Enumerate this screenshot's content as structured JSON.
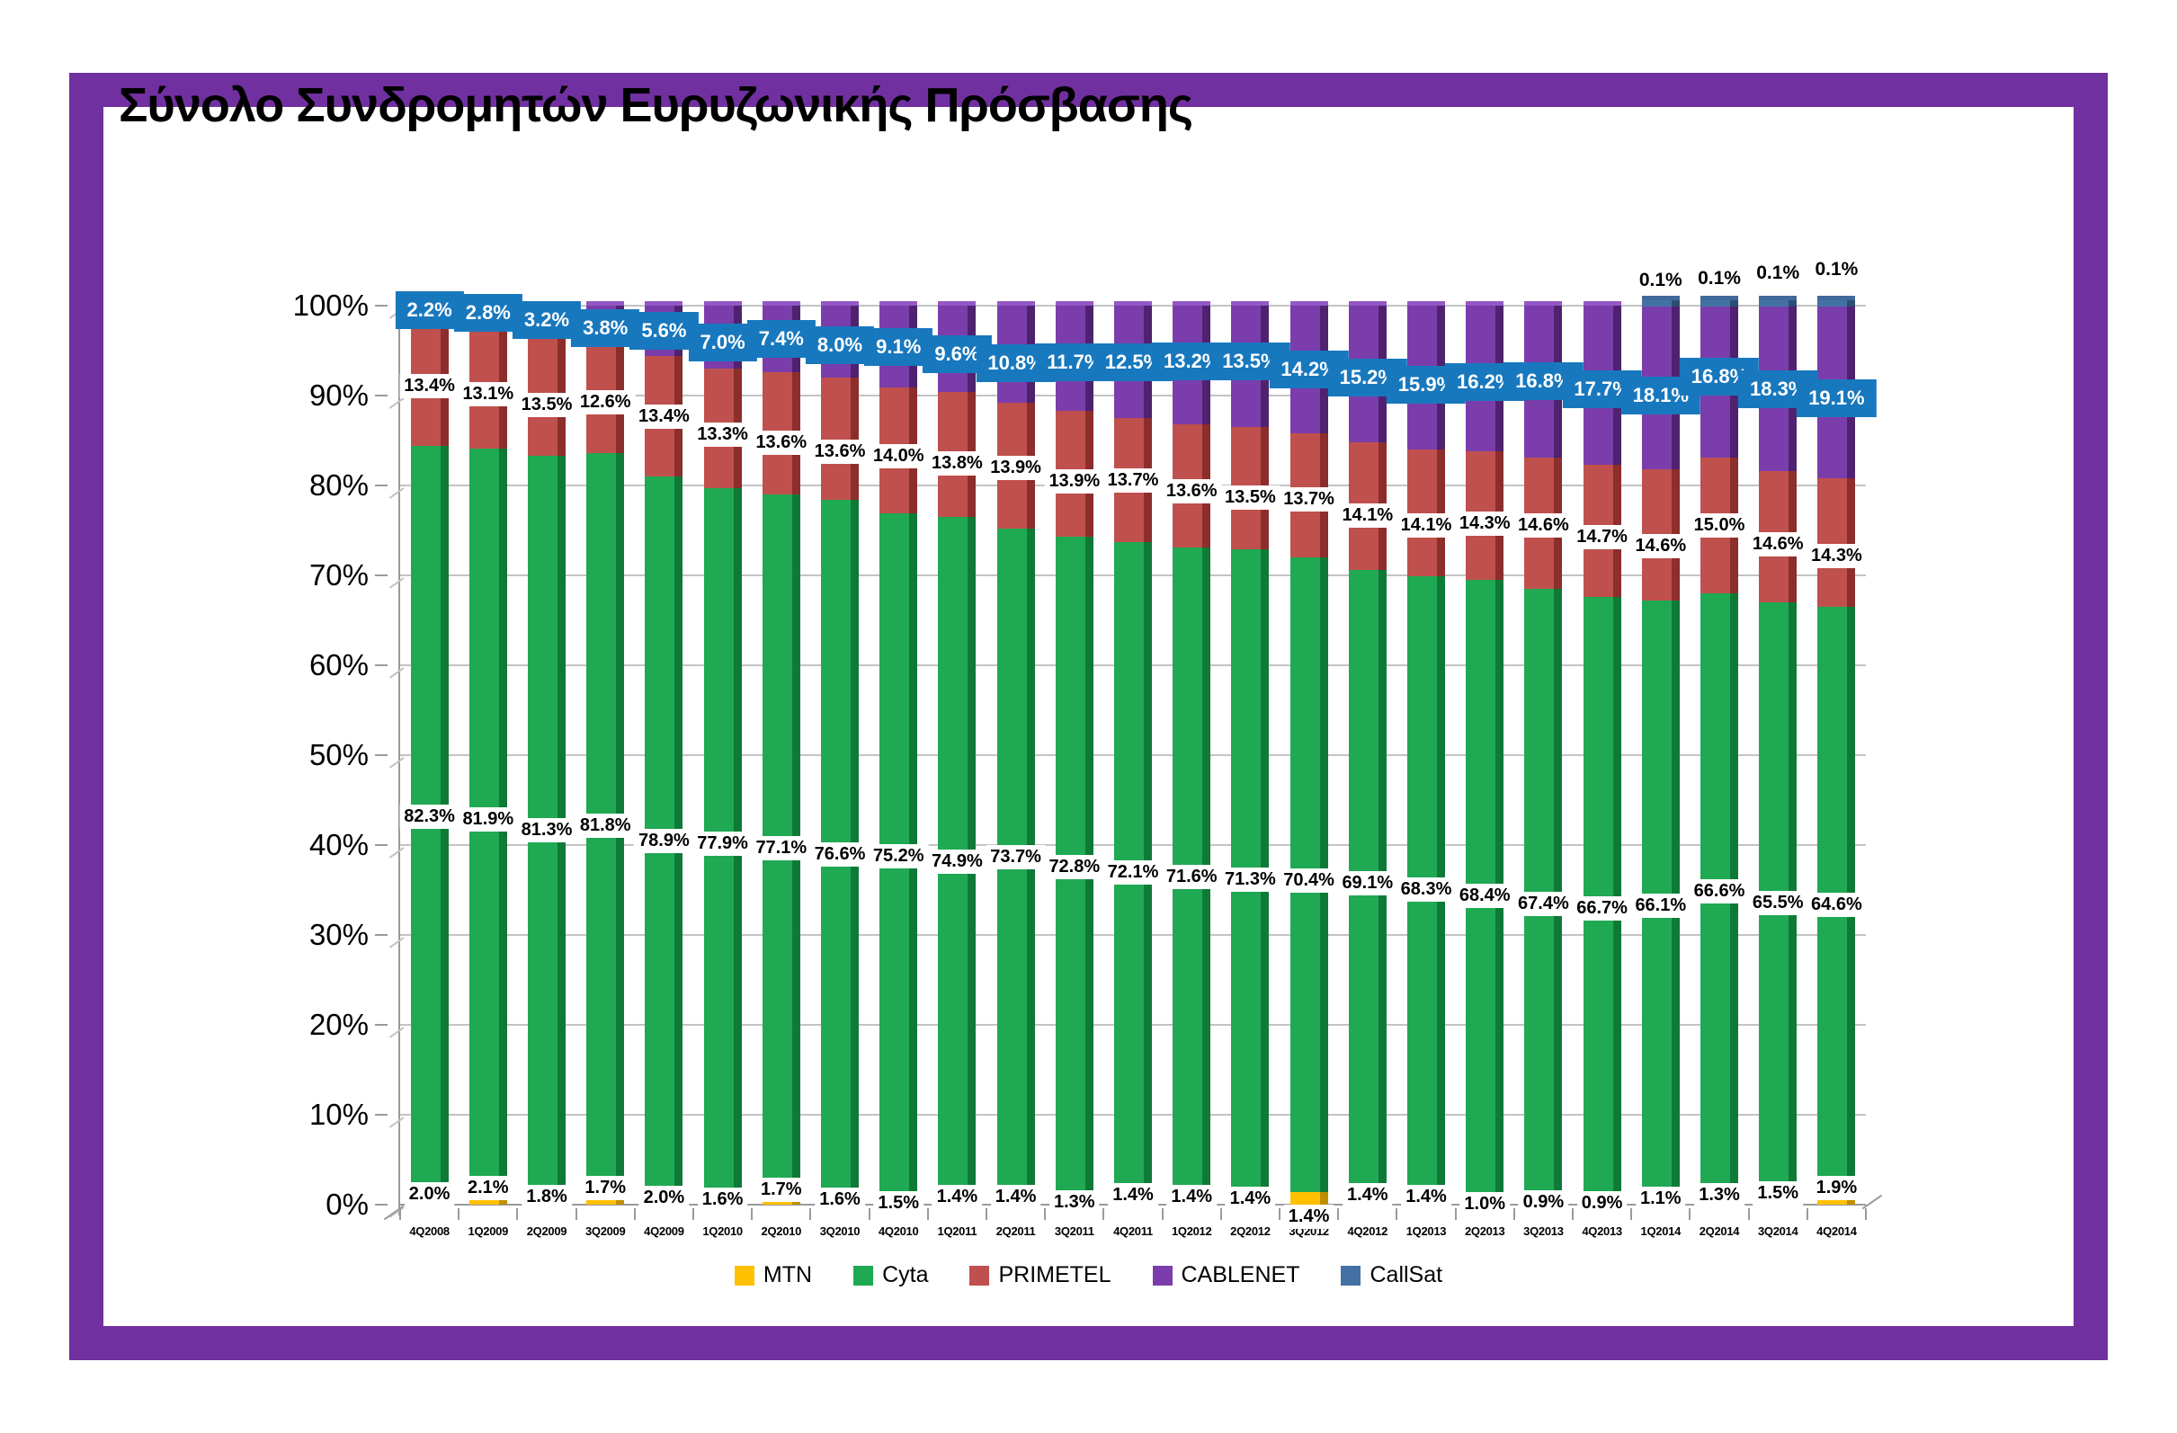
{
  "title": "Σύνολο Συνδρομητών Ευρυζωνικής Πρόσβασης",
  "colors": {
    "frame": "#7030A0",
    "gridline": "#C3C3C3",
    "axis": "#9A9A9A",
    "cablenet_label_bg": "#1878BE",
    "cablenet_label_text": "#FFFFFF",
    "data_label_text": "#000000"
  },
  "chart_data": {
    "type": "bar",
    "subtype": "stacked-100-percent-column",
    "title": "Σύνολο Συνδρομητών Ευρυζωνικής Πρόσβασης",
    "categories": [
      "4Q2008",
      "1Q2009",
      "2Q2009",
      "3Q2009",
      "4Q2009",
      "1Q2010",
      "2Q2010",
      "3Q2010",
      "4Q2010",
      "1Q2011",
      "2Q2011",
      "3Q2011",
      "4Q2011",
      "1Q2012",
      "2Q2012",
      "3Q2012",
      "4Q2012",
      "1Q2013",
      "2Q2013",
      "3Q2013",
      "4Q2013",
      "1Q2014",
      "2Q2014",
      "3Q2014",
      "4Q2014"
    ],
    "series": [
      {
        "name": "MTN",
        "color": "#FFC000",
        "side_color": "#BE8F00",
        "values": [
          2.0,
          2.1,
          1.8,
          1.7,
          2.0,
          1.6,
          1.7,
          1.6,
          1.5,
          1.4,
          1.4,
          1.3,
          1.4,
          1.4,
          1.4,
          1.4,
          1.4,
          1.4,
          1.0,
          0.9,
          0.9,
          1.1,
          1.3,
          1.5,
          1.9
        ]
      },
      {
        "name": "Cyta",
        "color": "#1FA953",
        "side_color": "#0F7A38",
        "values": [
          82.3,
          81.9,
          81.3,
          81.8,
          78.9,
          77.9,
          77.1,
          76.6,
          75.2,
          74.9,
          73.7,
          72.8,
          72.1,
          71.6,
          71.3,
          70.4,
          69.1,
          68.3,
          68.4,
          67.4,
          66.7,
          66.1,
          66.6,
          65.5,
          64.6
        ]
      },
      {
        "name": "PRIMETEL",
        "color": "#C0504D",
        "side_color": "#8C2E2C",
        "values": [
          13.4,
          13.1,
          13.5,
          12.6,
          13.4,
          13.3,
          13.6,
          13.6,
          14.0,
          13.8,
          13.9,
          13.9,
          13.7,
          13.6,
          13.5,
          13.7,
          14.1,
          14.1,
          14.3,
          14.6,
          14.7,
          14.6,
          15.0,
          14.6,
          14.3
        ]
      },
      {
        "name": "CABLENET",
        "color": "#7B3DAB",
        "side_color": "#4F2270",
        "values": [
          2.2,
          2.8,
          3.2,
          3.8,
          5.6,
          7.0,
          7.4,
          8.0,
          9.1,
          9.6,
          10.8,
          11.7,
          12.5,
          13.2,
          13.5,
          14.2,
          15.2,
          15.9,
          16.2,
          16.8,
          17.7,
          18.1,
          16.8,
          18.3,
          19.1
        ]
      },
      {
        "name": "CallSat",
        "color": "#4471A4",
        "side_color": "#2D4E74",
        "values": [
          0,
          0,
          0,
          0,
          0,
          0,
          0,
          0,
          0,
          0,
          0,
          0,
          0,
          0,
          0,
          0,
          0,
          0,
          0,
          0,
          0,
          0.1,
          0.1,
          0.1,
          0.1
        ]
      }
    ],
    "y_ticks": [
      "0%",
      "10%",
      "20%",
      "30%",
      "40%",
      "50%",
      "60%",
      "70%",
      "80%",
      "90%",
      "100%"
    ],
    "ylim": [
      0,
      100
    ],
    "gridlines": true,
    "legend_position": "bottom",
    "data_labels": "value-percent-one-decimal"
  }
}
